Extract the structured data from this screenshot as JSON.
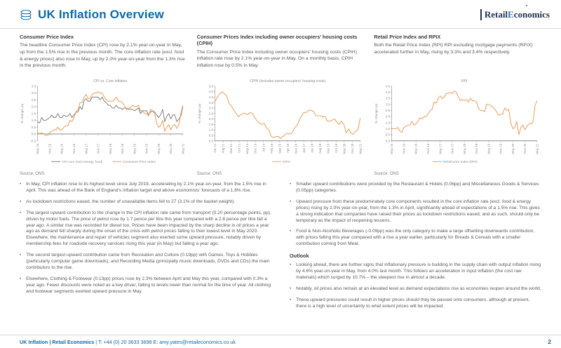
{
  "header": {
    "title": "UK Inflation Overview",
    "logo": {
      "part1": "Retail",
      "part2": "Economics"
    }
  },
  "colors": {
    "accent_blue": "#1167a8",
    "orange": "#ef9b55",
    "series_gray": "#808080"
  },
  "columns": [
    {
      "heading": "Consumer Price Index",
      "body": "The headline Consumer Price Index (CPI) rose by 2.1% year-on-year in May, up from the 1.5% rise in the previous month. The core inflation rate (excl. food & energy prices) also rose in May, up by 2.0% year-on-year from the 1.3% rise in the previous month.",
      "source": "Source: ONS"
    },
    {
      "heading": "Consumer Prices Index including owner occupiers’ housing costs (CPIH)",
      "body": "The Consumer Price Index including owner occupiers’ housing costs (CPIH) inflation rate rose by 2.1% year-on-year in May. On a monthly basis, CPIH inflation rose by 0.5% in May.",
      "source": "Source: ONS"
    },
    {
      "heading": "Retail Price Index and RPIX",
      "body": "Both the Retail Price Index (RPI) RPI excluding mortgage payments (RPIX) accelerated further in May, rising by 3.3% and 3.4% respectively.",
      "source": "Source: ONS"
    }
  ],
  "bullets_left": [
    "In May, CPI inflation rose to its highest level since July 2019, accelerating by 2.1% year-on-year, from the 1.5% rise in April. This was ahead of the Bank of England’s inflation target and above economists’ forecasts of a 1.8% rise.",
    "As lockdown restrictions eased, the number of unavailable items fell to 27 (3.1% of the basket weight).",
    "The largest upward contribution to the change in the CPI inflation rate came from transport (0.20 percentage points, pp), driven by motor fuels. The price of petrol rose by 1.7 pence per litre this year compared with a 2.8 pence per litre fall a year ago. A similar rise was recorded for diesel too. Prices have been impacted by the sharp decline in oil prices a year ago as demand fell sharply during the onset of the crisis with petrol prices falling to their lowest level in May 2020. Elsewhere, the maintenance and repair of vehicles segment also exerted some upward pressure, notably driven by membership fees for roadside recovery services rising this year (in May) but falling a year ago.",
    "The second largest upward contribution came from Recreation and Culture (0.19pp) with Games, Toys & Hobbies (particularly computer game downloads), and Recording Media (principally music downloads, DVDs and CDs) the main contributors to the rise.",
    "Elsewhere, Clothing & Footwear (0.13pp) prices rose by 2.3% between April and May this year, compared with 0.3% a year ago. Fewer discounts were noted as a key driver, falling to levels lower than normal for the time of year. All clothing and footwear segments exerted upward pressure in May."
  ],
  "bullets_right": [
    "Smaller upward contributions were provided by the Restaurant & Hotels (0.06pp) and Miscellaneous Goods & Services (0.05pp) categories.",
    "Upward pressure from these predominately core components resulted in the core inflation rate (excl. food & energy prices) rising by 2.0% year-on-year, from the 1.3% in April, significantly ahead of expectations of a 1.5% rise. This gives a strong indication that companies have raised their prices as lockdown restrictions eased, and as such, should only be temporary as the impact of reopening lessens.",
    "Food & Non-Alcoholic Beverages (-0.09pp) was the only category to make a large offsetting downwards contribution, with prices falling this year compared with a rise a year earlier, particularly for Breads & Cereals with a smaller contribution coming from Meat."
  ],
  "outlook": {
    "heading": "Outlook",
    "bullets": [
      "Looking ahead, there are further signs that inflationary pressure is building in the supply chain with output inflation rising by 4.6% year-on-year in May, from 4.0% last month. This follows an acceleration in input inflation (the cost raw materials) which surged by 10.7% – the steepest rise in almost a decade.",
      "Notably, oil prices also remain at an elevated level as demand expectations rise as economies reopen around the world.",
      "These upward pressures could result in higher prices should they be passed onto consumers, although at present, there is a high level of uncertainty to what extent prices will be impacted."
    ]
  },
  "footer": {
    "bold": "UK Inflation | Retail Economics",
    "rest": " | T: +44 (0) 20 3633 3698   E: amy.yates@retaileconomics.co.uk",
    "page": "2"
  },
  "chart_data": [
    {
      "type": "line",
      "title": "CPI vs. Core inflation",
      "ylabel": "% change y/y",
      "ylim": [
        -0.5,
        3.5
      ],
      "ytick_step": 0.5,
      "x_ticks": [
        "May 15",
        "Nov 15",
        "May 16",
        "Nov 16",
        "May 17",
        "Nov 17",
        "May 18",
        "Nov 18",
        "May 19",
        "Nov 19",
        "May 20",
        "Nov 20",
        "May 21"
      ],
      "legend_position": "bottom",
      "grid": false,
      "series": [
        {
          "name": "CPI core (excl energy, food)",
          "color": "#808080",
          "values": [
            0.9,
            0.8,
            1.2,
            1.0,
            1.0,
            1.1,
            1.2,
            1.4,
            1.2,
            1.2,
            1.5,
            1.2,
            1.2,
            1.4,
            1.3,
            1.3,
            1.5,
            1.2,
            1.4,
            1.6,
            1.6,
            2.0,
            1.8,
            2.4,
            2.6,
            2.4,
            2.4,
            2.7,
            2.7,
            2.7,
            2.7,
            2.5,
            2.7,
            2.4,
            2.3,
            2.1,
            2.1,
            1.9,
            1.9,
            2.1,
            1.9,
            1.9,
            1.8,
            1.9,
            1.9,
            1.8,
            1.8,
            1.8,
            1.7,
            1.8,
            1.9,
            1.5,
            1.7,
            1.7,
            1.7,
            1.4,
            1.6,
            1.7,
            1.6,
            1.4,
            1.2,
            1.4,
            1.8,
            0.9,
            1.3,
            1.5,
            1.1,
            1.4,
            1.4,
            0.9,
            1.1,
            1.3,
            2.0
          ]
        },
        {
          "name": "Consumer Price Index",
          "color": "#ef9b55",
          "values": [
            0.1,
            0.0,
            0.1,
            0.0,
            -0.1,
            -0.1,
            0.1,
            0.2,
            0.3,
            0.3,
            0.5,
            0.3,
            0.3,
            0.5,
            0.6,
            0.6,
            1.0,
            0.9,
            1.2,
            1.6,
            1.8,
            2.3,
            2.3,
            2.7,
            2.9,
            2.6,
            2.6,
            2.9,
            3.0,
            3.0,
            3.1,
            3.0,
            3.0,
            2.7,
            2.5,
            2.4,
            2.4,
            2.4,
            2.5,
            2.7,
            2.4,
            2.4,
            2.3,
            2.1,
            1.8,
            1.9,
            1.9,
            2.1,
            2.0,
            2.0,
            2.1,
            1.7,
            1.7,
            1.5,
            1.5,
            1.3,
            1.8,
            1.7,
            1.5,
            0.8,
            0.5,
            0.6,
            1.0,
            0.2,
            0.5,
            0.7,
            0.3,
            0.6,
            0.7,
            0.4,
            0.7,
            1.5,
            2.1
          ]
        }
      ],
      "source": "Source: ONS"
    },
    {
      "type": "line",
      "title": "CPIH (includes owner occupiers’ housing costs)",
      "ylabel": "% change y/y",
      "ylim": [
        0,
        5.0
      ],
      "ytick_step": 0.5,
      "x_ticks": [
        "Jan 11",
        "Aug 11",
        "Mar 12",
        "Oct 12",
        "May 13",
        "Dec 13",
        "Jul 14",
        "Feb 15",
        "Sep 15",
        "Apr 16",
        "Nov 16",
        "Jun 17",
        "Jan 18",
        "Aug 18",
        "Mar 19",
        "Oct 19",
        "May 20",
        "Dec 20",
        "May 21"
      ],
      "legend_position": "bottom",
      "grid": false,
      "series": [
        {
          "name": "CPIH",
          "color": "#ef9b55",
          "values": [
            3.6,
            4.0,
            4.3,
            4.5,
            4.3,
            4.1,
            3.4,
            3.2,
            2.8,
            2.5,
            2.2,
            2.4,
            2.5,
            2.5,
            2.4,
            2.6,
            2.5,
            2.1,
            1.8,
            1.6,
            1.5,
            1.6,
            1.2,
            1.0,
            0.4,
            0.3,
            0.4,
            0.4,
            0.2,
            0.4,
            0.6,
            0.7,
            0.6,
            0.8,
            1.2,
            1.4,
            1.9,
            2.3,
            2.6,
            2.6,
            2.8,
            2.8,
            2.7,
            2.3,
            2.3,
            2.3,
            2.2,
            2.2,
            1.8,
            1.8,
            1.9,
            2.0,
            1.7,
            1.5,
            1.8,
            1.5,
            0.7,
            1.1,
            0.7,
            0.6,
            0.9,
            1.0,
            2.1
          ]
        }
      ],
      "source": "Source: ONS"
    },
    {
      "type": "line",
      "title": "RPI",
      "ylabel": "% change y/y",
      "ylim": [
        0,
        4.5
      ],
      "ytick_step": 0.5,
      "x_ticks": [
        "May 15",
        "Nov 15",
        "May 16",
        "Nov 16",
        "May 17",
        "Nov 17",
        "May 18",
        "Nov 18",
        "May 19",
        "Nov 19",
        "May 20",
        "Nov 20",
        "May 21"
      ],
      "legend_position": "bottom",
      "grid": false,
      "series": [
        {
          "name": "Retail price index (RPI)",
          "color": "#ef9b55",
          "values": [
            1.0,
            1.0,
            1.0,
            1.1,
            0.8,
            0.7,
            1.1,
            1.2,
            1.3,
            1.3,
            1.6,
            1.3,
            1.4,
            1.6,
            1.9,
            1.8,
            2.0,
            2.0,
            2.2,
            2.5,
            2.6,
            3.2,
            3.1,
            3.5,
            3.7,
            3.5,
            3.6,
            3.9,
            3.9,
            4.0,
            3.9,
            4.1,
            4.0,
            3.6,
            3.3,
            3.4,
            3.3,
            3.4,
            3.2,
            3.5,
            3.3,
            3.3,
            3.2,
            2.7,
            2.5,
            2.5,
            2.4,
            3.0,
            3.0,
            2.9,
            2.8,
            2.6,
            2.4,
            2.1,
            2.2,
            2.2,
            2.7,
            2.5,
            2.6,
            1.5,
            1.0,
            1.1,
            1.6,
            0.5,
            1.1,
            1.3,
            0.9,
            1.2,
            1.4,
            1.4,
            1.5,
            2.9,
            3.3
          ]
        }
      ],
      "source": "Source: ONS"
    }
  ]
}
